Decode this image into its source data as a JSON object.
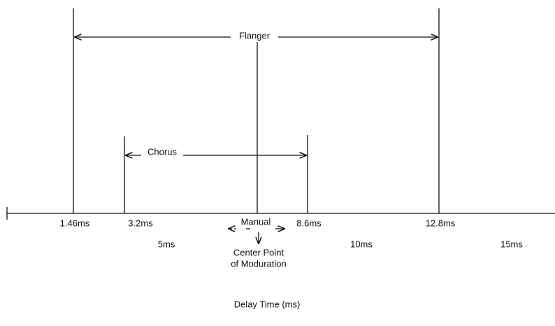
{
  "ranges": [
    {
      "label": "Flanger"
    },
    {
      "label": "Chorus"
    }
  ],
  "markers": [
    {
      "label": "1.46ms"
    },
    {
      "label": "3.2ms"
    },
    {
      "label": "8.6ms"
    },
    {
      "label": "12.8ms"
    }
  ],
  "scale_labels": [
    "5ms",
    "10ms",
    "15ms"
  ],
  "manual": "Manual",
  "center_note": [
    "Center Point",
    "of Moduration"
  ],
  "axis_title": "Delay Time (ms)"
}
